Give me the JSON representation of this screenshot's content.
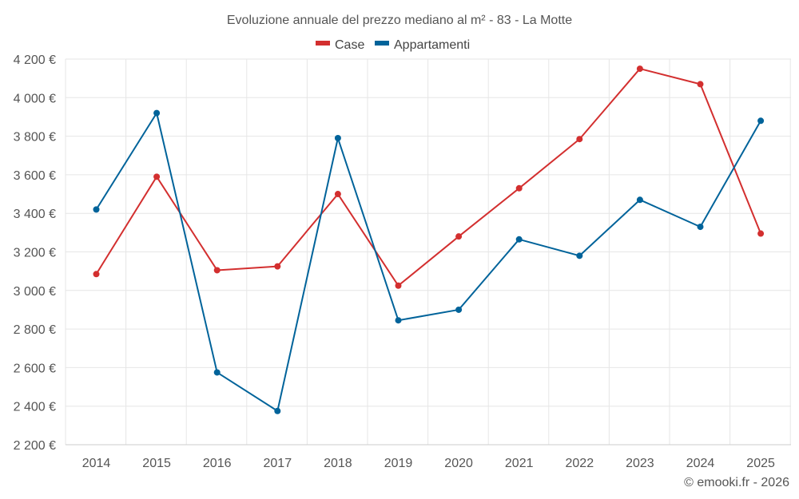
{
  "chart_data": {
    "type": "line",
    "title": "Evoluzione annuale del prezzo mediano al m² - 83 - La Motte",
    "categories": [
      "2014",
      "2015",
      "2016",
      "2017",
      "2018",
      "2019",
      "2020",
      "2021",
      "2022",
      "2023",
      "2024",
      "2025"
    ],
    "series": [
      {
        "name": "Case",
        "color": "#d32f2f",
        "values": [
          3085,
          3590,
          3105,
          3125,
          3500,
          3025,
          3280,
          3530,
          3785,
          4150,
          4070,
          3295
        ]
      },
      {
        "name": "Appartamenti",
        "color": "#00639a",
        "values": [
          3420,
          3920,
          2575,
          2375,
          3790,
          2845,
          2900,
          3265,
          3180,
          3470,
          3330,
          3880
        ]
      }
    ],
    "ylim": [
      2200,
      4200
    ],
    "yticks": [
      2200,
      2400,
      2600,
      2800,
      3000,
      3200,
      3400,
      3600,
      3800,
      4000,
      4200
    ],
    "ytick_labels": [
      "2 200 €",
      "2 400 €",
      "2 600 €",
      "2 800 €",
      "3 000 €",
      "3 200 €",
      "3 400 €",
      "3 600 €",
      "3 800 €",
      "4 000 €",
      "4 200 €"
    ],
    "xlabel": "",
    "ylabel": "",
    "grid": true,
    "legend_position": "top-center"
  },
  "credit": "© emooki.fr - 2026"
}
